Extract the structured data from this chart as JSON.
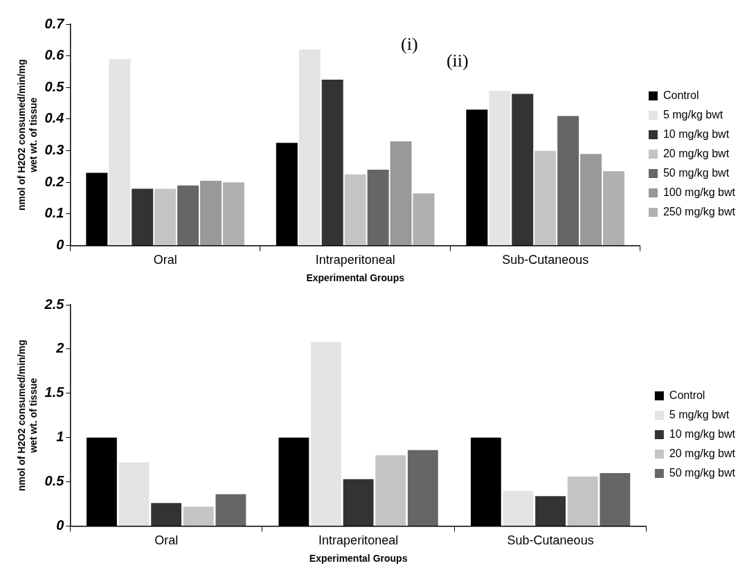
{
  "chart_data": [
    {
      "type": "bar",
      "categories": [
        "Oral",
        "Intraperitoneal",
        "Sub-Cutaneous"
      ],
      "xlabel": "Experimental Groups",
      "ylabel": "nmol of H2O2 consumed/min/mg wet wt. of tissue",
      "ylim": [
        0,
        0.7
      ],
      "yticks": [
        0,
        0.1,
        0.2,
        0.3,
        0.4,
        0.5,
        0.6,
        0.7
      ],
      "legend": "right",
      "annotations": [
        "(i)",
        "(ii)"
      ],
      "series": [
        {
          "name": "Control",
          "color": "#000000",
          "values": [
            0.23,
            0.325,
            0.43
          ]
        },
        {
          "name": "5 mg/kg bwt",
          "color": "#e4e4e4",
          "values": [
            0.59,
            0.62,
            0.49
          ]
        },
        {
          "name": "10 mg/kg bwt",
          "color": "#333333",
          "values": [
            0.18,
            0.525,
            0.48
          ]
        },
        {
          "name": "20 mg/kg bwt",
          "color": "#c4c4c4",
          "values": [
            0.18,
            0.225,
            0.3
          ]
        },
        {
          "name": "50 mg/kg bwt",
          "color": "#666666",
          "values": [
            0.19,
            0.24,
            0.41
          ]
        },
        {
          "name": "100 mg/kg bwt",
          "color": "#999999",
          "values": [
            0.205,
            0.33,
            0.29
          ]
        },
        {
          "name": "250 mg/kg bwt",
          "color": "#b0b0b0",
          "values": [
            0.2,
            0.165,
            0.235
          ]
        }
      ]
    },
    {
      "type": "bar",
      "categories": [
        "Oral",
        "Intraperitoneal",
        "Sub-Cutaneous"
      ],
      "xlabel": "Experimental Groups",
      "ylabel": "nmol of H2O2 consumed/min/mg wet wt. of tissue",
      "ylim": [
        0,
        2.5
      ],
      "yticks": [
        0,
        0.5,
        1,
        1.5,
        2,
        2.5
      ],
      "legend": "right",
      "series": [
        {
          "name": "Control",
          "color": "#000000",
          "values": [
            1.0,
            1.0,
            1.0
          ]
        },
        {
          "name": "5 mg/kg bwt",
          "color": "#e4e4e4",
          "values": [
            0.72,
            2.08,
            0.4
          ]
        },
        {
          "name": "10 mg/kg bwt",
          "color": "#333333",
          "values": [
            0.26,
            0.53,
            0.34
          ]
        },
        {
          "name": "20 mg/kg bwt",
          "color": "#c4c4c4",
          "values": [
            0.22,
            0.8,
            0.56
          ]
        },
        {
          "name": "50 mg/kg bwt",
          "color": "#666666",
          "values": [
            0.36,
            0.86,
            0.6
          ]
        }
      ]
    }
  ]
}
